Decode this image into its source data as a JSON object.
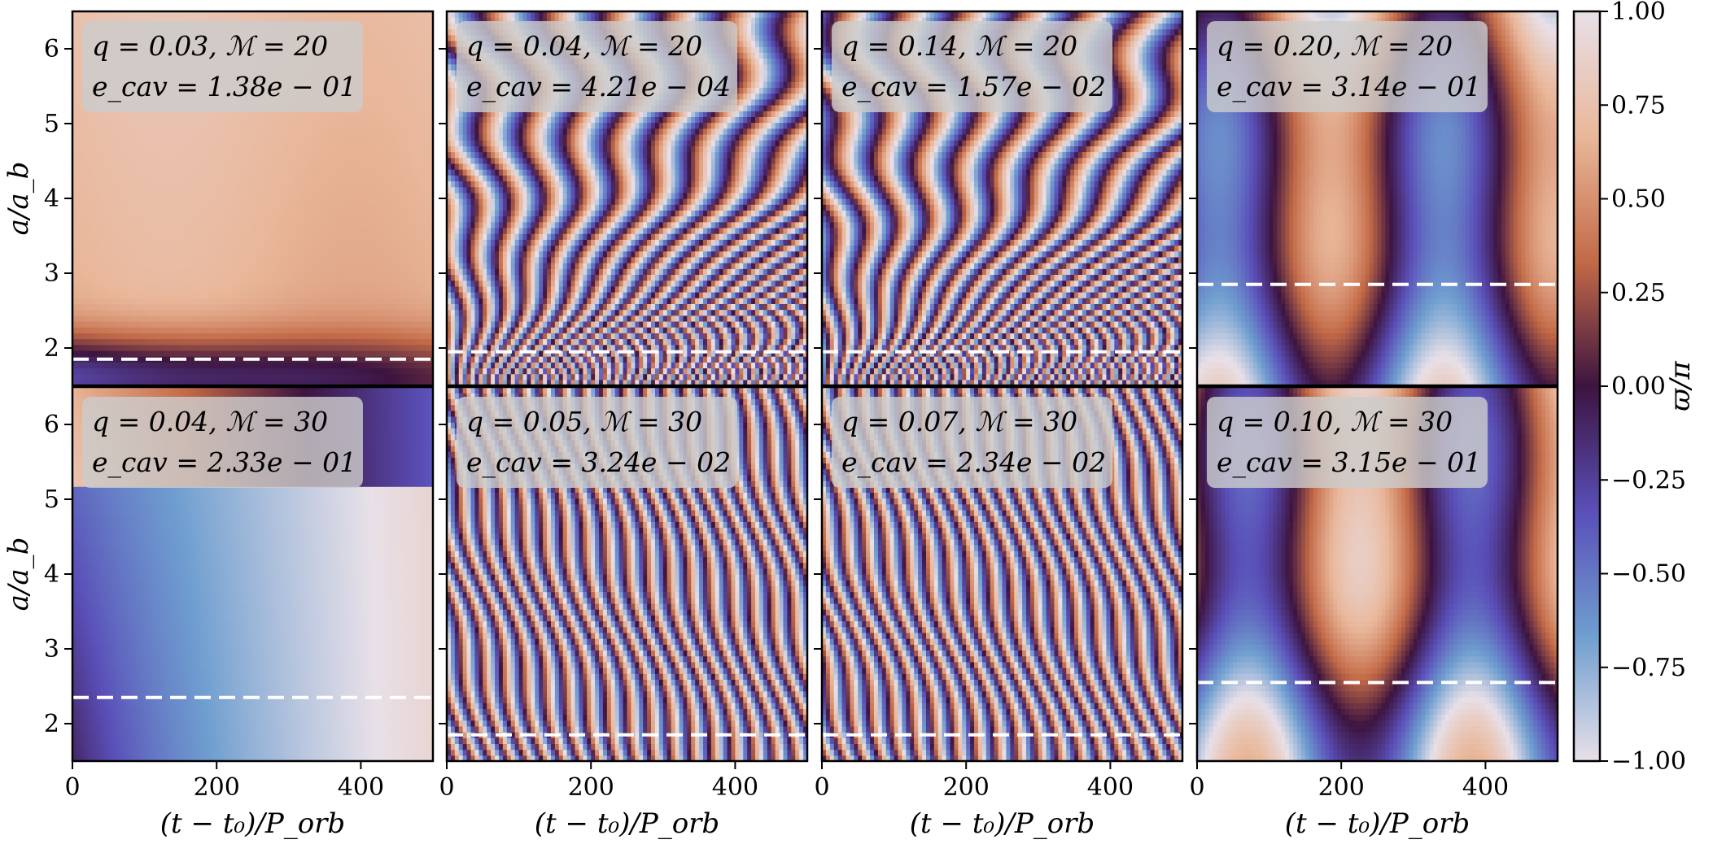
{
  "chart_data": {
    "type": "heatmap",
    "layout": "grid of 2 rows by 4 columns",
    "xlabel": "(t − t₀)/P_orb",
    "ylabel": "a/a_b",
    "xlim": [
      0,
      500
    ],
    "ylim": [
      1.5,
      6.5
    ],
    "xticks": [
      0,
      200,
      400
    ],
    "yticks": [
      2,
      3,
      4,
      5,
      6
    ],
    "colorbar": {
      "label": "ϖ/π",
      "range": [
        -1.0,
        1.0
      ],
      "ticks": [
        "1.00",
        "0.75",
        "0.50",
        "0.25",
        "0.00",
        "−0.25",
        "−0.50",
        "−0.75",
        "−1.00"
      ]
    },
    "panels": [
      {
        "q_label": "q = 0.03, ℳ = 20",
        "e_label": "e_cav = 1.38e − 01",
        "q": 0.03,
        "mach": 20,
        "e_cav": 0.138,
        "cavity_a": 1.85,
        "pattern": "smooth"
      },
      {
        "q_label": "q = 0.04, ℳ = 20",
        "e_label": "e_cav = 4.21e − 04",
        "q": 0.04,
        "mach": 20,
        "e_cav": 0.000421,
        "cavity_a": 1.95,
        "pattern": "stripes-fast"
      },
      {
        "q_label": "q = 0.14, ℳ = 20",
        "e_label": "e_cav = 1.57e − 02",
        "q": 0.14,
        "mach": 20,
        "e_cav": 0.0157,
        "cavity_a": 1.95,
        "pattern": "stripes-fast"
      },
      {
        "q_label": "q = 0.20, ℳ = 20",
        "e_label": "e_cav = 3.14e − 01",
        "q": 0.2,
        "mach": 20,
        "e_cav": 0.314,
        "cavity_a": 2.85,
        "pattern": "bands"
      },
      {
        "q_label": "q = 0.04, ℳ = 30",
        "e_label": "e_cav = 2.33e − 01",
        "q": 0.04,
        "mach": 30,
        "e_cav": 0.233,
        "cavity_a": 2.35,
        "pattern": "smooth-diag"
      },
      {
        "q_label": "q = 0.05, ℳ = 30",
        "e_label": "e_cav = 3.24e − 02",
        "q": 0.05,
        "mach": 30,
        "e_cav": 0.0324,
        "cavity_a": 1.85,
        "pattern": "stripes"
      },
      {
        "q_label": "q = 0.07, ℳ = 30",
        "e_label": "e_cav = 2.34e − 02",
        "q": 0.07,
        "mach": 30,
        "e_cav": 0.0234,
        "cavity_a": 1.85,
        "pattern": "stripes"
      },
      {
        "q_label": "q = 0.10, ℳ = 30",
        "e_label": "e_cav = 3.15e − 01",
        "q": 0.1,
        "mach": 30,
        "e_cav": 0.315,
        "cavity_a": 2.55,
        "pattern": "bands"
      }
    ]
  },
  "colors": {
    "cmap": [
      "#e8e0e8",
      "#6f9ed0",
      "#5a4fb8",
      "#3d1440",
      "#c36a47",
      "#e9b79a",
      "#e8e0e8"
    ],
    "cavity_line": "#ffffff",
    "annotation_box": "#cccccc"
  }
}
